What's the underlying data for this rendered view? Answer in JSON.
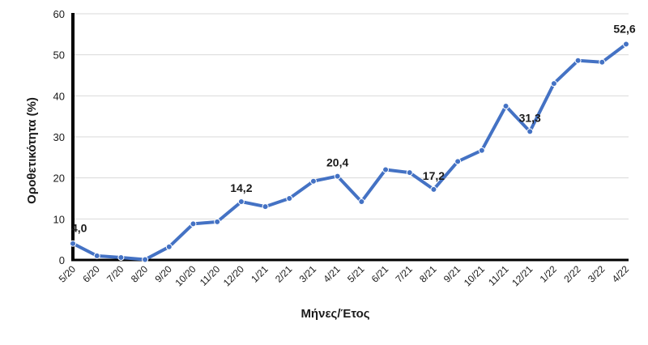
{
  "chart_data": {
    "type": "line",
    "xlabel": "Μήνες/Έτος",
    "ylabel": "Οροθετικότητα (%)",
    "ylim": [
      0,
      60
    ],
    "yticks": [
      "0",
      "10",
      "20",
      "30",
      "40",
      "50",
      "60"
    ],
    "grid": true,
    "categories": [
      "5/20",
      "6/20",
      "7/20",
      "8/20",
      "9/20",
      "10/20",
      "11/20",
      "12/20",
      "1/21",
      "2/21",
      "3/21",
      "4/21",
      "5/21",
      "6/21",
      "7/21",
      "8/21",
      "9/21",
      "10/21",
      "11/21",
      "12/21",
      "1/22",
      "2/22",
      "3/22",
      "4/22"
    ],
    "series": [
      {
        "values": [
          4.0,
          1.0,
          0.6,
          0.1,
          3.2,
          8.8,
          9.3,
          14.2,
          13.0,
          15.0,
          19.2,
          20.4,
          14.2,
          22.0,
          21.3,
          17.2,
          24.0,
          26.7,
          37.5,
          31.3,
          43.0,
          48.6,
          48.2,
          52.6
        ],
        "color": "#4472C4"
      }
    ],
    "data_labels": [
      {
        "index": 0,
        "text": "4,0"
      },
      {
        "index": 7,
        "text": "14,2"
      },
      {
        "index": 11,
        "text": "20,4"
      },
      {
        "index": 15,
        "text": "17,2"
      },
      {
        "index": 19,
        "text": "31,3"
      },
      {
        "index": 23,
        "text": "52,6"
      }
    ]
  }
}
